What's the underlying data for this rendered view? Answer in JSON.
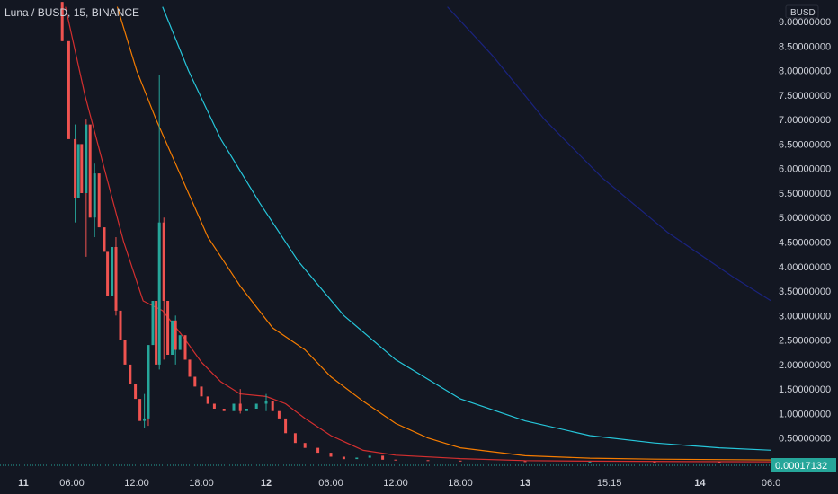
{
  "chart_data": {
    "type": "line",
    "title": "Luna / BUSD, 15, BINANCE",
    "unit_label": "BUSD",
    "current_price": "0.00017132",
    "colors": {
      "background": "#131722",
      "up": "#26a69a",
      "down": "#ef5350",
      "ma_red": "#d32f2f",
      "ma_orange": "#f57c00",
      "ma_teal": "#26c6da",
      "ma_navy": "#1a237e",
      "price_line": "#26a69a",
      "axis_text": "#d1d4dc"
    },
    "ylim": [
      0,
      9.25
    ],
    "xlim": [
      -1,
      16.5
    ],
    "y_ticks": [
      {
        "value": 9.0,
        "label": "9.00000000"
      },
      {
        "value": 8.5,
        "label": "8.50000000"
      },
      {
        "value": 8.0,
        "label": "8.00000000"
      },
      {
        "value": 7.5,
        "label": "7.50000000"
      },
      {
        "value": 7.0,
        "label": "7.00000000"
      },
      {
        "value": 6.5,
        "label": "6.50000000"
      },
      {
        "value": 6.0,
        "label": "6.00000000"
      },
      {
        "value": 5.5,
        "label": "5.50000000"
      },
      {
        "value": 5.0,
        "label": "5.00000000"
      },
      {
        "value": 4.5,
        "label": "4.50000000"
      },
      {
        "value": 4.0,
        "label": "4.00000000"
      },
      {
        "value": 3.5,
        "label": "3.50000000"
      },
      {
        "value": 3.0,
        "label": "3.00000000"
      },
      {
        "value": 2.5,
        "label": "2.50000000"
      },
      {
        "value": 2.0,
        "label": "2.00000000"
      },
      {
        "value": 1.5,
        "label": "1.50000000"
      },
      {
        "value": 1.0,
        "label": "1.00000000"
      },
      {
        "value": 0.5,
        "label": "0.50000000"
      }
    ],
    "x_ticks": [
      {
        "t": -0.75,
        "label": "11",
        "bold": true
      },
      {
        "t": 0,
        "label": "06:00",
        "bold": false
      },
      {
        "t": 1,
        "label": "12:00",
        "bold": false
      },
      {
        "t": 2,
        "label": "18:00",
        "bold": false
      },
      {
        "t": 3,
        "label": "12",
        "bold": true
      },
      {
        "t": 4,
        "label": "06:00",
        "bold": false
      },
      {
        "t": 5,
        "label": "12:00",
        "bold": false
      },
      {
        "t": 6,
        "label": "18:00",
        "bold": false
      },
      {
        "t": 7,
        "label": "13",
        "bold": true
      },
      {
        "t": 8.3,
        "label": "15:15",
        "bold": false
      },
      {
        "t": 9.7,
        "label": "14",
        "bold": true
      },
      {
        "t": 10.8,
        "label": "06:0",
        "bold": false
      }
    ],
    "series": [
      {
        "color_key": "ma_navy",
        "points": [
          [
            5.8,
            9.3
          ],
          [
            6.5,
            8.3
          ],
          [
            7.3,
            7.0
          ],
          [
            8.2,
            5.8
          ],
          [
            9.2,
            4.7
          ],
          [
            10.2,
            3.8
          ],
          [
            10.8,
            3.3
          ],
          [
            11.4,
            2.95
          ]
        ]
      },
      {
        "color_key": "ma_teal",
        "points": [
          [
            1.4,
            9.3
          ],
          [
            1.8,
            8.0
          ],
          [
            2.3,
            6.6
          ],
          [
            2.9,
            5.3
          ],
          [
            3.5,
            4.1
          ],
          [
            4.2,
            3.0
          ],
          [
            5.0,
            2.1
          ],
          [
            6.0,
            1.3
          ],
          [
            7.0,
            0.85
          ],
          [
            8.0,
            0.55
          ],
          [
            9.0,
            0.4
          ],
          [
            10.0,
            0.3
          ],
          [
            11.3,
            0.22
          ]
        ]
      },
      {
        "color_key": "ma_orange",
        "points": [
          [
            0.7,
            9.3
          ],
          [
            1.0,
            8.0
          ],
          [
            1.3,
            7.0
          ],
          [
            1.7,
            5.8
          ],
          [
            2.1,
            4.6
          ],
          [
            2.6,
            3.6
          ],
          [
            3.1,
            2.75
          ],
          [
            3.6,
            2.3
          ],
          [
            4.0,
            1.75
          ],
          [
            4.5,
            1.25
          ],
          [
            5.0,
            0.8
          ],
          [
            5.5,
            0.5
          ],
          [
            6.0,
            0.3
          ],
          [
            7.0,
            0.14
          ],
          [
            8.0,
            0.09
          ],
          [
            9.0,
            0.07
          ],
          [
            10.0,
            0.06
          ],
          [
            11.3,
            0.05
          ]
        ]
      },
      {
        "color_key": "ma_red",
        "points": [
          [
            -0.1,
            9.3
          ],
          [
            0.2,
            7.5
          ],
          [
            0.5,
            6.0
          ],
          [
            0.8,
            4.5
          ],
          [
            1.1,
            3.3
          ],
          [
            1.4,
            3.1
          ],
          [
            1.7,
            2.6
          ],
          [
            2.0,
            2.05
          ],
          [
            2.3,
            1.65
          ],
          [
            2.6,
            1.4
          ],
          [
            3.0,
            1.35
          ],
          [
            3.3,
            1.2
          ],
          [
            3.6,
            0.9
          ],
          [
            4.0,
            0.55
          ],
          [
            4.5,
            0.25
          ],
          [
            5.0,
            0.15
          ],
          [
            6.0,
            0.08
          ],
          [
            7.0,
            0.04
          ],
          [
            8.0,
            0.03
          ],
          [
            9.5,
            0.02
          ],
          [
            11.3,
            0.015
          ]
        ]
      }
    ],
    "price_series": [
      [
        -0.15,
        9.4
      ],
      [
        -0.05,
        8.6
      ],
      [
        0.05,
        6.6
      ],
      [
        0.1,
        5.4
      ],
      [
        0.15,
        6.5
      ],
      [
        0.22,
        5.5
      ],
      [
        0.28,
        6.9
      ],
      [
        0.35,
        5.0
      ],
      [
        0.42,
        5.9
      ],
      [
        0.5,
        4.8
      ],
      [
        0.55,
        4.3
      ],
      [
        0.62,
        3.4
      ],
      [
        0.68,
        4.4
      ],
      [
        0.75,
        3.1
      ],
      [
        0.82,
        2.5
      ],
      [
        0.9,
        2.0
      ],
      [
        0.98,
        1.6
      ],
      [
        1.05,
        1.3
      ],
      [
        1.12,
        0.85
      ],
      [
        1.18,
        0.9
      ],
      [
        1.25,
        2.4
      ],
      [
        1.3,
        3.3
      ],
      [
        1.35,
        2.0
      ],
      [
        1.42,
        4.9
      ],
      [
        1.48,
        3.3
      ],
      [
        1.55,
        2.2
      ],
      [
        1.6,
        2.9
      ],
      [
        1.67,
        2.3
      ],
      [
        1.75,
        2.6
      ],
      [
        1.82,
        2.1
      ],
      [
        1.9,
        1.75
      ],
      [
        2.0,
        1.55
      ],
      [
        2.1,
        1.35
      ],
      [
        2.2,
        1.2
      ],
      [
        2.35,
        1.1
      ],
      [
        2.5,
        1.05
      ],
      [
        2.6,
        1.2
      ],
      [
        2.7,
        1.05
      ],
      [
        2.85,
        1.1
      ],
      [
        3.0,
        1.2
      ],
      [
        3.1,
        1.25
      ],
      [
        3.2,
        1.05
      ],
      [
        3.3,
        0.9
      ],
      [
        3.45,
        0.6
      ],
      [
        3.6,
        0.4
      ],
      [
        3.8,
        0.3
      ],
      [
        4.0,
        0.2
      ],
      [
        4.2,
        0.12
      ],
      [
        4.4,
        0.07
      ],
      [
        4.6,
        0.1
      ],
      [
        4.8,
        0.14
      ],
      [
        5.0,
        0.06
      ],
      [
        5.5,
        0.05
      ],
      [
        6.0,
        0.04
      ],
      [
        7.0,
        0.03
      ],
      [
        8.0,
        0.02
      ],
      [
        9.0,
        0.02
      ],
      [
        10.0,
        0.015
      ],
      [
        11.3,
        0.012
      ]
    ],
    "wicks": [
      [
        -0.15,
        9.4,
        8.6
      ],
      [
        0.05,
        6.9,
        4.9
      ],
      [
        0.22,
        7.0,
        4.2
      ],
      [
        0.35,
        6.1,
        4.6
      ],
      [
        0.68,
        4.6,
        3.0
      ],
      [
        1.12,
        1.4,
        0.7
      ],
      [
        1.18,
        1.2,
        0.75
      ],
      [
        1.35,
        7.9,
        1.9
      ],
      [
        1.42,
        5.0,
        2.1
      ],
      [
        1.6,
        3.0,
        2.0
      ],
      [
        2.6,
        1.5,
        1.0
      ],
      [
        3.0,
        1.4,
        1.05
      ]
    ],
    "grid": false,
    "legend": "none"
  }
}
